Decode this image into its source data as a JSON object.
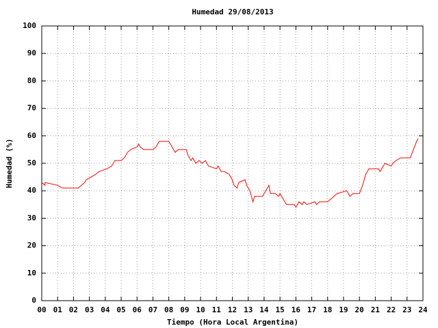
{
  "chart_data": {
    "type": "line",
    "title": "Humedad 29/08/2013",
    "x_label": "Tiempo (Hora Local Argentina)",
    "y_label": "Humedad (%)",
    "color": "#ff0000",
    "x": [
      0.0,
      0.2,
      0.21,
      1.0,
      1.3,
      2.3,
      2.5,
      2.7,
      2.8,
      3.1,
      3.4,
      3.6,
      4.1,
      4.4,
      4.5,
      4.6,
      5.0,
      5.2,
      5.3,
      5.4,
      5.6,
      6.0,
      6.1,
      6.2,
      6.4,
      7.0,
      7.2,
      7.3,
      7.4,
      8.0,
      8.1,
      8.3,
      8.4,
      8.6,
      9.1,
      9.2,
      9.4,
      9.5,
      9.7,
      9.9,
      10.1,
      10.3,
      10.5,
      11.0,
      11.1,
      11.3,
      11.5,
      11.8,
      12.0,
      12.1,
      12.3,
      12.4,
      12.8,
      12.9,
      13.1,
      13.3,
      13.4,
      13.9,
      14.1,
      14.3,
      14.4,
      14.7,
      14.9,
      15.0,
      15.2,
      15.4,
      15.9,
      16.0,
      16.2,
      16.4,
      16.5,
      16.7,
      17.2,
      17.3,
      17.5,
      18.0,
      18.2,
      18.4,
      18.6,
      19.2,
      19.3,
      19.4,
      19.6,
      20.0,
      20.2,
      20.4,
      20.6,
      21.2,
      21.3,
      21.5,
      21.6,
      22.0,
      22.1,
      22.3,
      22.6,
      23.2,
      23.4,
      23.6,
      23.7
    ],
    "values": [
      43,
      42,
      43,
      42,
      41,
      41,
      42,
      43,
      44,
      45,
      46,
      47,
      48,
      49,
      50,
      51,
      51,
      52,
      53,
      54,
      55,
      56,
      57,
      56,
      55,
      55,
      56,
      57,
      58,
      58,
      57,
      55,
      54,
      55,
      55,
      53,
      51,
      52,
      50,
      51,
      50,
      51,
      49,
      48,
      49,
      47,
      47,
      46,
      44,
      42,
      41,
      43,
      44,
      42,
      40,
      36,
      38,
      38,
      40,
      42,
      39,
      39,
      38,
      39,
      37,
      35,
      35,
      34,
      36,
      35,
      36,
      35,
      36,
      35,
      36,
      36,
      37,
      38,
      39,
      40,
      39,
      38,
      39,
      39,
      42,
      46,
      48,
      48,
      47,
      49,
      50,
      49,
      50,
      51,
      52,
      52,
      55,
      58,
      59
    ],
    "xlim": [
      0,
      24
    ],
    "ylim": [
      0,
      100
    ],
    "yticks": [
      0,
      10,
      20,
      30,
      40,
      50,
      60,
      70,
      80,
      90,
      100
    ],
    "xticks": [
      {
        "value": 0,
        "label": "00"
      },
      {
        "value": 1,
        "label": "01"
      },
      {
        "value": 2,
        "label": "02"
      },
      {
        "value": 3,
        "label": "03"
      },
      {
        "value": 4,
        "label": "04"
      },
      {
        "value": 5,
        "label": "05"
      },
      {
        "value": 6,
        "label": "06"
      },
      {
        "value": 7,
        "label": "07"
      },
      {
        "value": 8,
        "label": "08"
      },
      {
        "value": 9,
        "label": "09"
      },
      {
        "value": 10,
        "label": "10"
      },
      {
        "value": 11,
        "label": "11"
      },
      {
        "value": 12,
        "label": "12"
      },
      {
        "value": 13,
        "label": "13"
      },
      {
        "value": 14,
        "label": "14"
      },
      {
        "value": 15,
        "label": "15"
      },
      {
        "value": 16,
        "label": "16"
      },
      {
        "value": 17,
        "label": "17"
      },
      {
        "value": 18,
        "label": "18"
      },
      {
        "value": 19,
        "label": "19"
      },
      {
        "value": 20,
        "label": "20"
      },
      {
        "value": 21,
        "label": "21"
      },
      {
        "value": 22,
        "label": "22"
      },
      {
        "value": 23,
        "label": "23"
      },
      {
        "value": 24,
        "label": "24"
      }
    ],
    "grid": true
  }
}
